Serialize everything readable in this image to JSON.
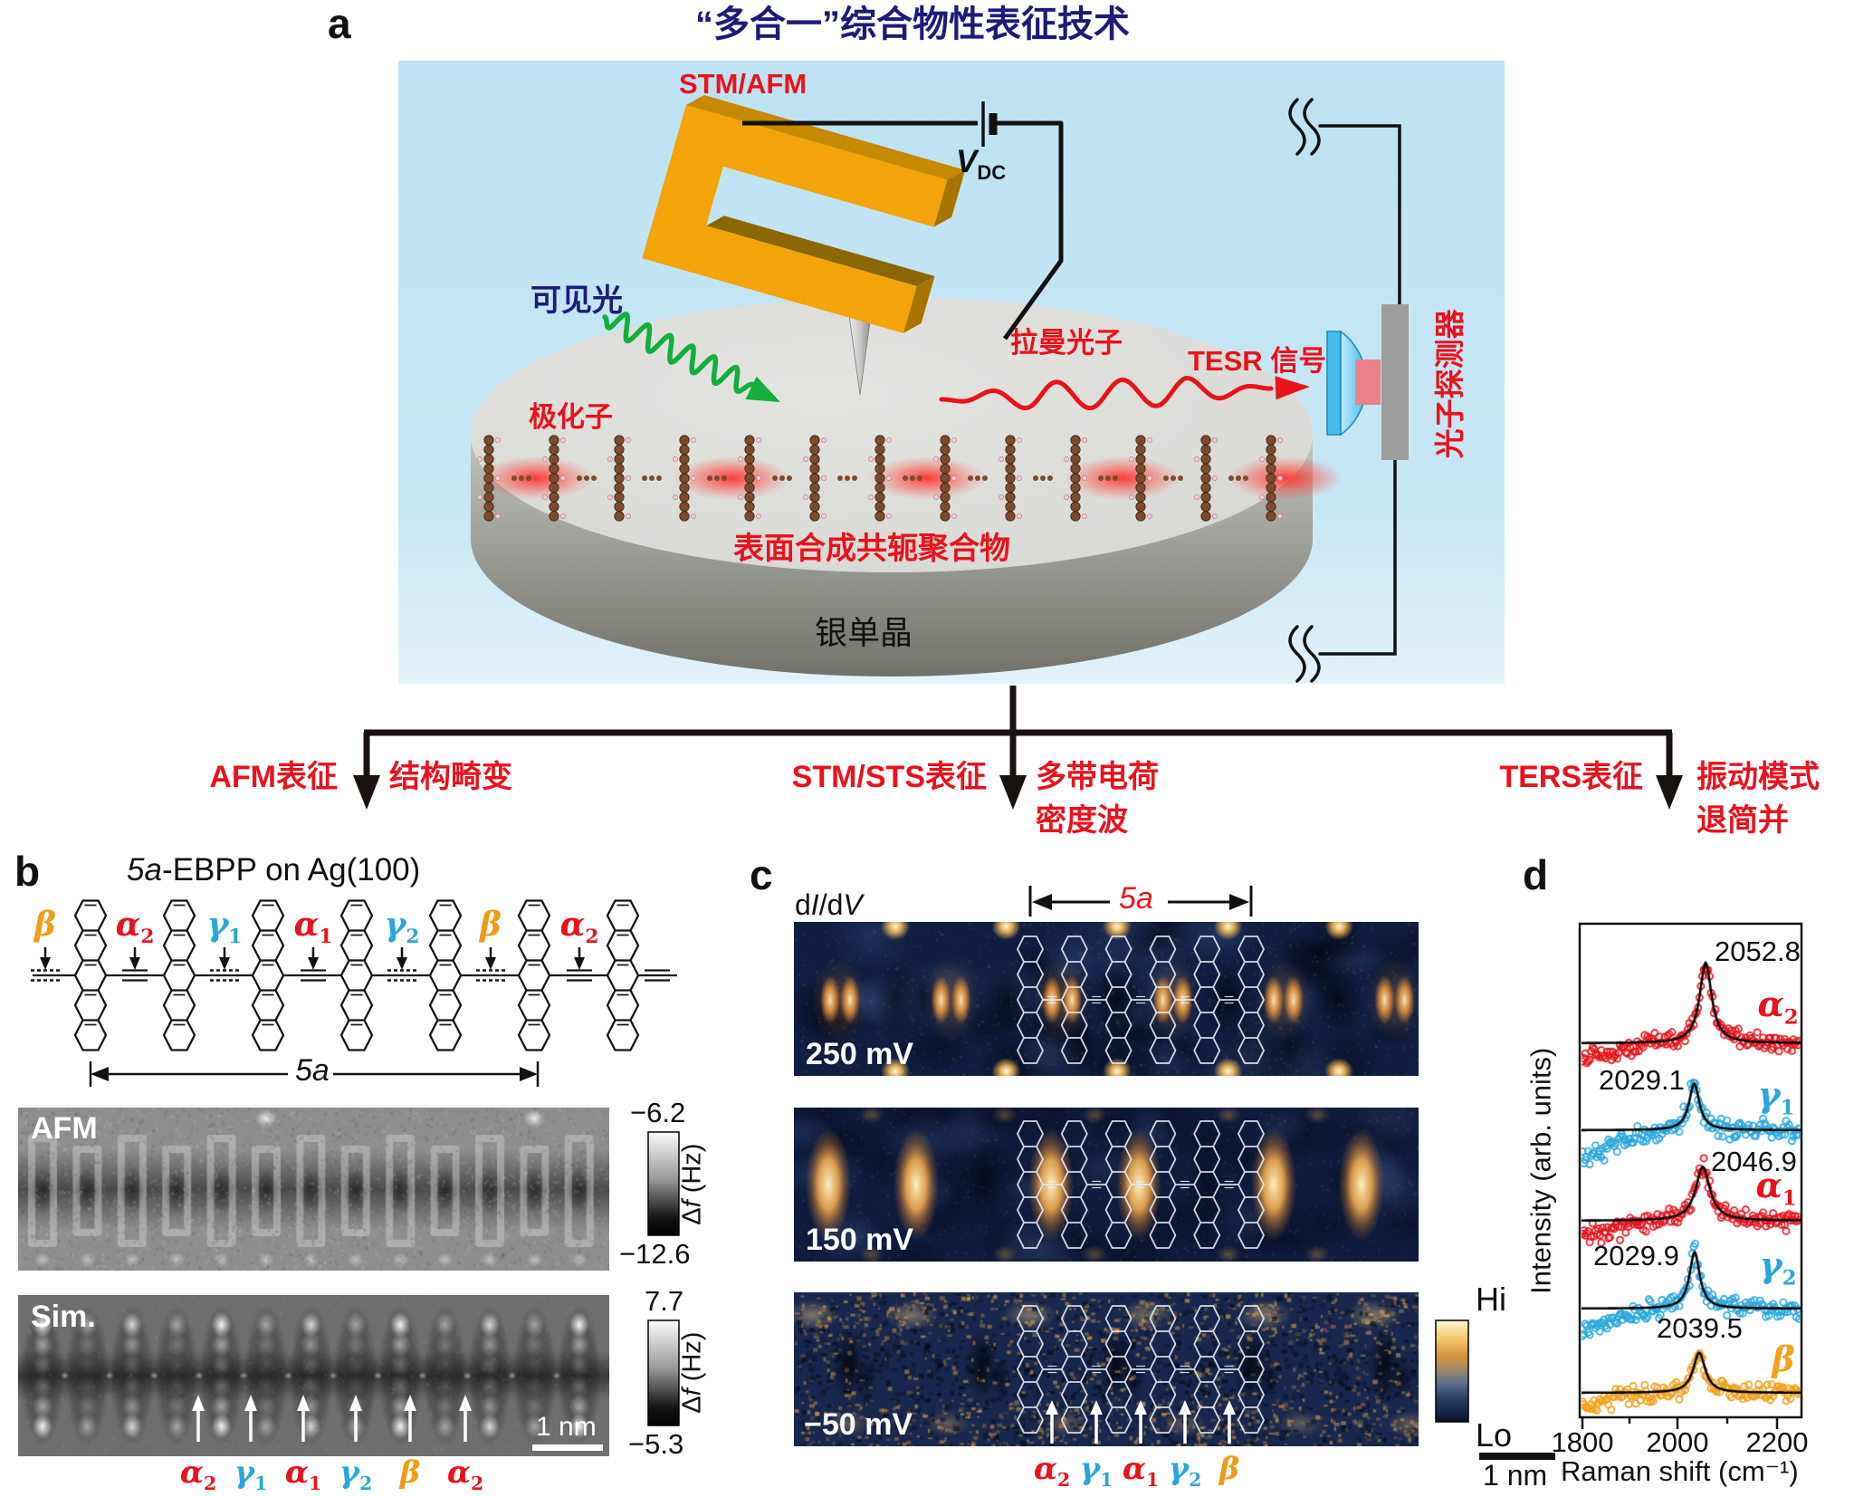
{
  "panel_a": {
    "label": "a",
    "title": "“多合一”综合物性表征技术",
    "probe_label": "STM/AFM",
    "bias_label": {
      "base": "V",
      "sub": "DC"
    },
    "incident_light_label": "可见光",
    "polaron_label": "极化子",
    "raman_photon_label": "拉曼光子",
    "tesr_signal_label": "TESR 信号",
    "photon_detector_label": "光子探测器",
    "polymer_label": "表面合成共轭聚合物",
    "substrate_label": "银单晶"
  },
  "flow_branches": [
    {
      "method": "AFM表征",
      "results": [
        "结构畸变"
      ]
    },
    {
      "method": "STM/STS表征",
      "results": [
        "多带电荷",
        "密度波"
      ]
    },
    {
      "method": "TERS表征",
      "results": [
        "振动模式",
        "退简并"
      ]
    }
  ],
  "panel_b": {
    "label": "b",
    "title_italic": "5a",
    "title_rest": "-EBPP on Ag(100)",
    "bond_site_labels": [
      {
        "base": "β",
        "sub": "",
        "color": "#f09c18"
      },
      {
        "base": "α",
        "sub": "2",
        "color": "#e8131c"
      },
      {
        "base": "γ",
        "sub": "1",
        "color": "#2aa6dd"
      },
      {
        "base": "α",
        "sub": "1",
        "color": "#e8131c"
      },
      {
        "base": "γ",
        "sub": "2",
        "color": "#2aa6dd"
      },
      {
        "base": "β",
        "sub": "",
        "color": "#f09c18"
      },
      {
        "base": "α",
        "sub": "2",
        "color": "#e8131c"
      }
    ],
    "unit_span_label": "5a",
    "afm_image": {
      "tag": "AFM",
      "colorbar": {
        "max": "−6.2",
        "min": "−12.6",
        "unit_delta": "Δ",
        "unit_symbol": "f",
        "unit_rest": " (Hz)"
      }
    },
    "sim_image": {
      "tag": "Sim.",
      "scale_bar": "1 nm",
      "colorbar": {
        "max": "7.7",
        "min": "−5.3",
        "unit_delta": "Δ",
        "unit_symbol": "f",
        "unit_rest": " (Hz)"
      },
      "site_labels": [
        {
          "base": "α",
          "sub": "2",
          "color": "#e8131c"
        },
        {
          "base": "γ",
          "sub": "1",
          "color": "#2aa6dd"
        },
        {
          "base": "α",
          "sub": "1",
          "color": "#e8131c"
        },
        {
          "base": "γ",
          "sub": "2",
          "color": "#2aa6dd"
        },
        {
          "base": "β",
          "sub": "",
          "color": "#f09c18"
        },
        {
          "base": "α",
          "sub": "2",
          "color": "#e8131c"
        }
      ]
    }
  },
  "panel_c": {
    "label": "c",
    "signal_parts": {
      "d1": "d",
      "num": "I",
      "d2": "/d",
      "den": "V"
    },
    "unit_span_label": "5a",
    "bias_labels": [
      "250 mV",
      "150 mV",
      "−50 mV"
    ],
    "colorbar": {
      "high": "Hi",
      "low": "Lo"
    },
    "scale_bar": "1 nm",
    "site_labels": [
      {
        "base": "α",
        "sub": "2",
        "color": "#e8131c"
      },
      {
        "base": "γ",
        "sub": "1",
        "color": "#2aa6dd"
      },
      {
        "base": "α",
        "sub": "1",
        "color": "#e8131c"
      },
      {
        "base": "γ",
        "sub": "2",
        "color": "#2aa6dd"
      },
      {
        "base": "β",
        "sub": "",
        "color": "#f09c18"
      }
    ]
  },
  "panel_d": {
    "label": "d",
    "chart_data": {
      "type": "scatter",
      "xlabel": "Raman shift (cm⁻¹)",
      "ylabel": "Intensity (arb. units)",
      "xlim": [
        1795,
        2250
      ],
      "xticks": [
        1800,
        2000,
        2200
      ],
      "minor_xticks": [
        1900,
        2100
      ],
      "stacked": true,
      "fit_model": "Lorentzian",
      "grid": false,
      "series": [
        {
          "name": "α2",
          "label": {
            "base": "α",
            "sub": "2"
          },
          "color": "#e8131c",
          "peak_center": 2052.8,
          "peak_label": "2052.8",
          "rel_height": 1.0,
          "hwhm": 15
        },
        {
          "name": "γ1",
          "label": {
            "base": "γ",
            "sub": "1"
          },
          "color": "#2aa6dd",
          "peak_center": 2029.1,
          "peak_label": "2029.1",
          "rel_height": 0.58,
          "hwhm": 13
        },
        {
          "name": "α1",
          "label": {
            "base": "α",
            "sub": "1"
          },
          "color": "#e8131c",
          "peak_center": 2046.9,
          "peak_label": "2046.9",
          "rel_height": 0.67,
          "hwhm": 18
        },
        {
          "name": "γ2",
          "label": {
            "base": "γ",
            "sub": "2"
          },
          "color": "#2aa6dd",
          "peak_center": 2029.9,
          "peak_label": "2029.9",
          "rel_height": 0.7,
          "hwhm": 13
        },
        {
          "name": "β",
          "label": {
            "base": "β",
            "sub": ""
          },
          "color": "#f0a21b",
          "peak_center": 2039.5,
          "peak_label": "2039.5",
          "rel_height": 0.5,
          "hwhm": 15
        }
      ]
    }
  }
}
